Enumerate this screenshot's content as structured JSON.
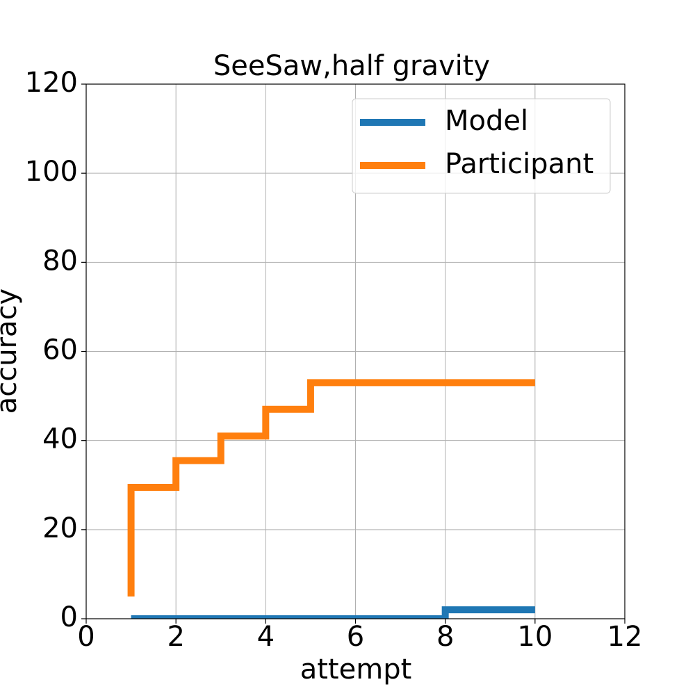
{
  "chart_data": {
    "type": "line",
    "title": "SeeSaw,half gravity",
    "x_label": "attempt",
    "y_label": "accuracy",
    "x": [
      1,
      2,
      3,
      4,
      5,
      6,
      7,
      8,
      9,
      10
    ],
    "series": [
      {
        "name": "Model",
        "color": "#1f77b4",
        "values": [
          0,
          0,
          0,
          0,
          0,
          0,
          0,
          0,
          2,
          2
        ]
      },
      {
        "name": "Participant",
        "color": "#ff7f0e",
        "values": [
          5,
          29.5,
          35.5,
          41,
          47,
          53,
          53,
          53,
          53,
          53
        ]
      }
    ],
    "drawstyle": "steps-pre",
    "xlim": [
      0,
      12
    ],
    "xticks": [
      0,
      2,
      4,
      6,
      8,
      10,
      12
    ],
    "ylim": [
      0,
      120
    ],
    "yticks": [
      0,
      20,
      40,
      60,
      80,
      100,
      120
    ],
    "grid": true,
    "legend": "upper right"
  }
}
